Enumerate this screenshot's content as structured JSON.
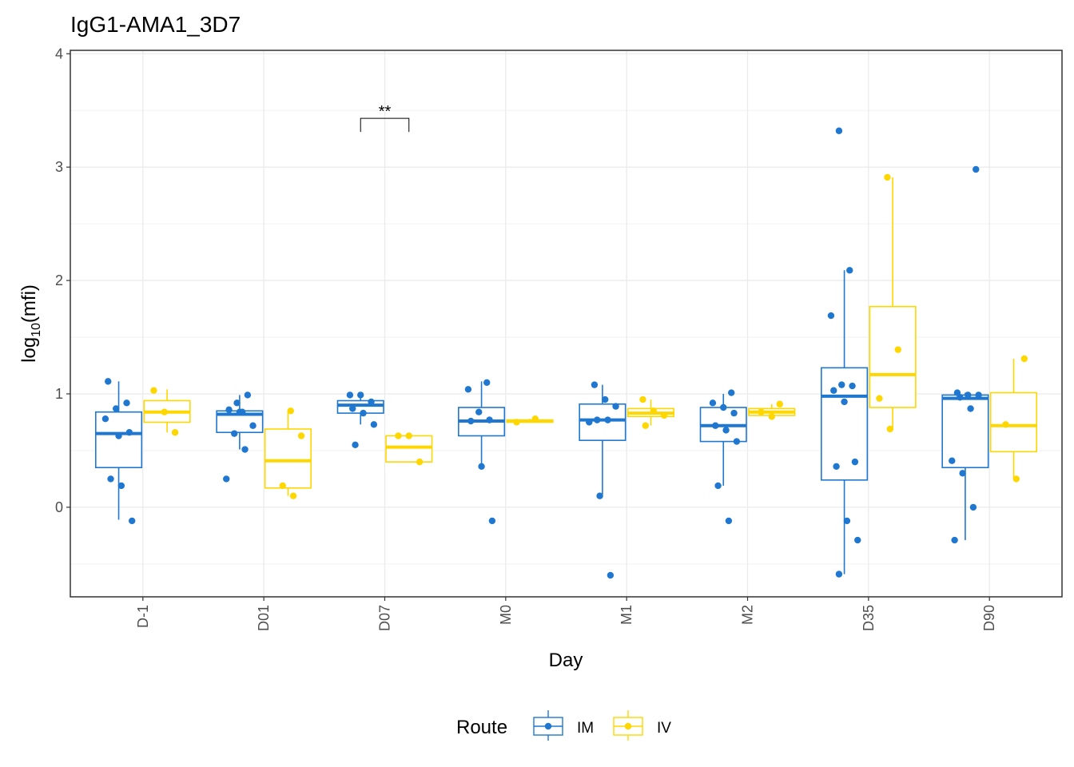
{
  "chart_data": {
    "type": "boxplot",
    "title": "IgG1-AMA1_3D7",
    "x_label": "Day",
    "y_label": {
      "base": "log",
      "subscript": "10",
      "rest": "(mfi)"
    },
    "categories": [
      "D-1",
      "D01",
      "D07",
      "M0",
      "M1",
      "M2",
      "D35",
      "D90"
    ],
    "ylim": [
      -0.79,
      4.03
    ],
    "yticks": [
      0,
      1,
      2,
      3,
      4
    ],
    "grid": true,
    "legend": {
      "title": "Route",
      "position": "bottom"
    },
    "annotations": [
      {
        "text": "**",
        "category": "D07",
        "y": 3.43,
        "y_end": 3.31
      }
    ],
    "series": [
      {
        "name": "IM",
        "color": "#1f77cf",
        "boxes": [
          {
            "low": -0.11,
            "q1": 0.35,
            "median": 0.65,
            "q3": 0.84,
            "high": 1.11,
            "points": [
              0.78,
              0.87,
              0.92,
              1.11,
              0.63,
              0.66,
              0.25,
              0.19,
              -0.12
            ]
          },
          {
            "low": 0.51,
            "q1": 0.66,
            "median": 0.82,
            "q3": 0.85,
            "high": 0.99,
            "points": [
              0.84,
              0.72,
              0.65,
              0.51,
              0.25,
              0.92,
              0.99,
              0.86,
              0.84
            ]
          },
          {
            "low": 0.73,
            "q1": 0.83,
            "median": 0.9,
            "q3": 0.94,
            "high": 1.0,
            "points": [
              0.99,
              0.99,
              0.93,
              0.87,
              0.83,
              0.73,
              0.55
            ]
          },
          {
            "low": 0.36,
            "q1": 0.63,
            "median": 0.76,
            "q3": 0.88,
            "high": 1.11,
            "points": [
              1.1,
              1.04,
              0.84,
              0.77,
              0.76,
              0.36,
              -0.12
            ]
          },
          {
            "low": 0.11,
            "q1": 0.59,
            "median": 0.77,
            "q3": 0.91,
            "high": 1.08,
            "points": [
              1.08,
              0.95,
              0.89,
              0.77,
              0.77,
              0.75,
              0.1,
              -0.6
            ]
          },
          {
            "low": 0.19,
            "q1": 0.58,
            "median": 0.72,
            "q3": 0.88,
            "high": 1.0,
            "points": [
              1.01,
              0.92,
              0.88,
              0.83,
              0.72,
              0.68,
              0.58,
              0.19,
              -0.12
            ]
          },
          {
            "low": -0.59,
            "q1": 0.24,
            "median": 0.98,
            "q3": 1.23,
            "high": 2.09,
            "points": [
              3.32,
              2.09,
              1.69,
              1.08,
              1.07,
              1.03,
              0.93,
              0.4,
              0.36,
              -0.12,
              -0.29,
              -0.59
            ]
          },
          {
            "low": -0.29,
            "q1": 0.35,
            "median": 0.96,
            "q3": 0.99,
            "high": 1.01,
            "points": [
              2.98,
              1.01,
              0.99,
              0.99,
              0.97,
              0.87,
              0.41,
              0.3,
              0.0,
              -0.29
            ]
          }
        ]
      },
      {
        "name": "IV",
        "color": "#ffd700",
        "boxes": [
          {
            "low": 0.66,
            "q1": 0.75,
            "median": 0.84,
            "q3": 0.94,
            "high": 1.04,
            "points": [
              1.03,
              0.84,
              0.66
            ]
          },
          {
            "low": 0.1,
            "q1": 0.17,
            "median": 0.41,
            "q3": 0.69,
            "high": 0.85,
            "points": [
              0.85,
              0.63,
              0.19,
              0.1
            ]
          },
          {
            "low": 0.4,
            "q1": 0.4,
            "median": 0.53,
            "q3": 0.63,
            "high": 0.63,
            "points": [
              0.63,
              0.63,
              0.4
            ]
          },
          {
            "low": 0.75,
            "q1": 0.75,
            "median": 0.76,
            "q3": 0.77,
            "high": 0.78,
            "points": [
              0.78,
              0.75
            ]
          },
          {
            "low": 0.72,
            "q1": 0.8,
            "median": 0.83,
            "q3": 0.87,
            "high": 0.95,
            "points": [
              0.95,
              0.85,
              0.81,
              0.72
            ]
          },
          {
            "low": 0.8,
            "q1": 0.81,
            "median": 0.84,
            "q3": 0.87,
            "high": 0.91,
            "points": [
              0.91,
              0.84,
              0.8
            ]
          },
          {
            "low": 0.69,
            "q1": 0.88,
            "median": 1.17,
            "q3": 1.77,
            "high": 2.91,
            "points": [
              2.91,
              1.39,
              0.96,
              0.69
            ]
          },
          {
            "low": 0.25,
            "q1": 0.49,
            "median": 0.72,
            "q3": 1.01,
            "high": 1.31,
            "points": [
              1.31,
              0.73,
              0.25
            ]
          }
        ]
      }
    ]
  }
}
